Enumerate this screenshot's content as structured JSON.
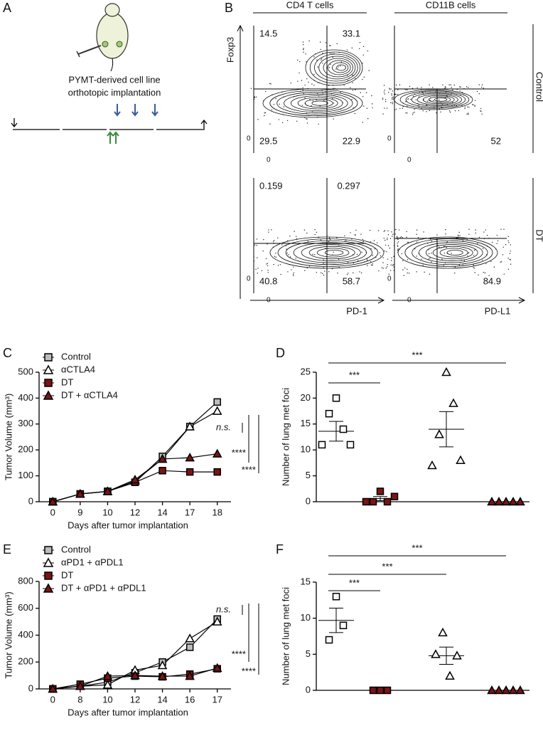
{
  "panel_labels": [
    "A",
    "B",
    "C",
    "D",
    "E",
    "F"
  ],
  "schematic": {
    "caption": [
      "PYMT-derived cell line",
      "orthotopic implantation"
    ]
  },
  "flow": {
    "columns": [
      "CD4 T cells",
      "CD11B cells"
    ],
    "rows": [
      "Control",
      "DT"
    ],
    "y_label": "Foxp3",
    "x_labels": [
      "PD-1",
      "PD-L1"
    ],
    "axis_zero": 0,
    "plots": [
      {
        "tl": 14.5,
        "tr": 33.1,
        "bl": 29.5,
        "br": 22.9
      },
      {
        "br": 52
      },
      {
        "tl": 0.159,
        "tr": 0.297,
        "bl": 40.8,
        "br": 58.7
      },
      {
        "br": 84.9
      }
    ]
  },
  "chart_data": [
    {
      "type": "line",
      "y_label": "Tumor Volume (mm³)",
      "x_label": "Days after tumor implantation",
      "categories": [
        "0",
        "9",
        "10",
        "12",
        "14",
        "17",
        "18"
      ],
      "ylim": [
        0,
        500
      ],
      "yticks": [
        0,
        100,
        200,
        300,
        400,
        500
      ],
      "series": [
        {
          "name": "Control",
          "color": "#bdbdbd",
          "marker": "square",
          "values": [
            0,
            30,
            40,
            75,
            175,
            290,
            385
          ]
        },
        {
          "name": "αCTLA4",
          "color": "#ffffff",
          "marker": "triangle",
          "values": [
            0,
            30,
            40,
            80,
            165,
            290,
            350
          ]
        },
        {
          "name": "DT",
          "color": "#7b1414",
          "marker": "square",
          "values": [
            0,
            30,
            40,
            75,
            120,
            115,
            115
          ]
        },
        {
          "name": "DT + αCTLA4",
          "color": "#7b1414",
          "marker": "triangle",
          "values": [
            0,
            30,
            40,
            85,
            165,
            170,
            185
          ]
        }
      ],
      "annotations": [
        "n.s.",
        "****",
        "****"
      ]
    },
    {
      "type": "dotplot",
      "y_label": "Number of lung met foci",
      "ylim": [
        0,
        25
      ],
      "yticks": [
        0,
        5,
        10,
        15,
        20,
        25
      ],
      "groups": [
        {
          "color": "#ffffff",
          "marker": "square",
          "values": [
            11,
            17,
            20,
            14,
            11
          ],
          "mean": 13.6,
          "sem": 1.9
        },
        {
          "color": "#7b1414",
          "marker": "square",
          "values": [
            0,
            0,
            2,
            0,
            1
          ],
          "mean": 0.6,
          "sem": 0.4
        },
        {
          "color": "#ffffff",
          "marker": "triangle",
          "values": [
            7,
            13,
            25,
            19,
            8
          ],
          "mean": 14,
          "sem": 3.4
        },
        {
          "color": "#7b1414",
          "marker": "triangle",
          "values": [
            0,
            0,
            0,
            0,
            0
          ],
          "mean": 0,
          "sem": 0
        }
      ],
      "comparisons": [
        "***",
        "***"
      ]
    },
    {
      "type": "line",
      "y_label": "Tumor Volume (mm³)",
      "x_label": "Days after tumor implantation",
      "categories": [
        "0",
        "8",
        "10",
        "12",
        "14",
        "16",
        "17"
      ],
      "ylim": [
        0,
        800
      ],
      "yticks": [
        0,
        200,
        400,
        600,
        800
      ],
      "series": [
        {
          "name": "Control",
          "color": "#bdbdbd",
          "marker": "square",
          "values": [
            0,
            20,
            50,
            120,
            200,
            310,
            520
          ]
        },
        {
          "name": "αPD1 + αPDL1",
          "color": "#ffffff",
          "marker": "triangle",
          "values": [
            0,
            20,
            30,
            140,
            175,
            375,
            500
          ]
        },
        {
          "name": "DT",
          "color": "#7b1414",
          "marker": "square",
          "values": [
            0,
            35,
            80,
            95,
            90,
            110,
            150
          ]
        },
        {
          "name": "DT + αPD1 + αPDL1",
          "color": "#7b1414",
          "marker": "triangle",
          "values": [
            0,
            20,
            95,
            100,
            95,
            95,
            155
          ]
        }
      ],
      "annotations": [
        "n.s.",
        "****",
        "****"
      ]
    },
    {
      "type": "dotplot",
      "y_label": "Number of lung met foci",
      "ylim": [
        0,
        15
      ],
      "yticks": [
        0,
        5,
        10,
        15
      ],
      "groups": [
        {
          "color": "#ffffff",
          "marker": "square",
          "values": [
            7,
            13,
            9
          ],
          "mean": 9.7,
          "sem": 1.7
        },
        {
          "color": "#7b1414",
          "marker": "square",
          "values": [
            0,
            0,
            0
          ],
          "mean": 0,
          "sem": 0
        },
        {
          "color": "#ffffff",
          "marker": "triangle",
          "values": [
            5,
            8,
            2,
            4.8
          ],
          "mean": 4.8,
          "sem": 1.2
        },
        {
          "color": "#7b1414",
          "marker": "triangle",
          "values": [
            0,
            0,
            0,
            0,
            0
          ],
          "mean": 0,
          "sem": 0
        }
      ],
      "comparisons": [
        "***",
        "***",
        "***"
      ]
    }
  ]
}
